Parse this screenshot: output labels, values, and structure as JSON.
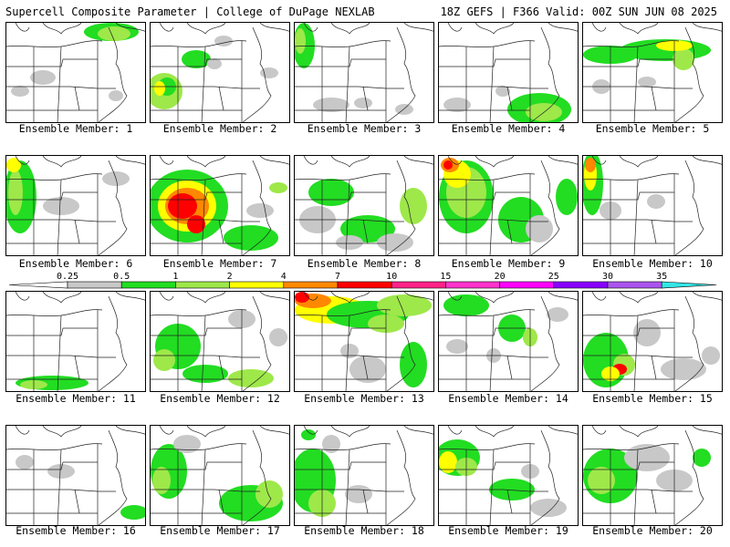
{
  "header": {
    "title": "Supercell Composite Parameter | College of DuPage NEXLAB",
    "run_info": "18Z GEFS | F366 Valid: 00Z SUN JUN 08 2025"
  },
  "colorbar": {
    "ticks": [
      "0.25",
      "0.5",
      "1",
      "2",
      "4",
      "7",
      "10",
      "15",
      "20",
      "25",
      "30",
      "35"
    ],
    "colors": [
      "#c8c8c8",
      "#22dd22",
      "#9ee84a",
      "#ffff00",
      "#ff8800",
      "#ff0000",
      "#ff2288",
      "#ff33cc",
      "#ff00ff",
      "#8800ff",
      "#aa55ee",
      "#33e6e6"
    ]
  },
  "panels": [
    {
      "label": "Ensemble Member: 1"
    },
    {
      "label": "Ensemble Member: 2"
    },
    {
      "label": "Ensemble Member: 3"
    },
    {
      "label": "Ensemble Member: 4"
    },
    {
      "label": "Ensemble Member: 5"
    },
    {
      "label": "Ensemble Member: 6"
    },
    {
      "label": "Ensemble Member: 7"
    },
    {
      "label": "Ensemble Member: 8"
    },
    {
      "label": "Ensemble Member: 9"
    },
    {
      "label": "Ensemble Member: 10"
    },
    {
      "label": "Ensemble Member: 11"
    },
    {
      "label": "Ensemble Member: 12"
    },
    {
      "label": "Ensemble Member: 13"
    },
    {
      "label": "Ensemble Member: 14"
    },
    {
      "label": "Ensemble Member: 15"
    },
    {
      "label": "Ensemble Member: 16"
    },
    {
      "label": "Ensemble Member: 17"
    },
    {
      "label": "Ensemble Member: 18"
    },
    {
      "label": "Ensemble Member: 19"
    },
    {
      "label": "Ensemble Member: 20"
    }
  ]
}
